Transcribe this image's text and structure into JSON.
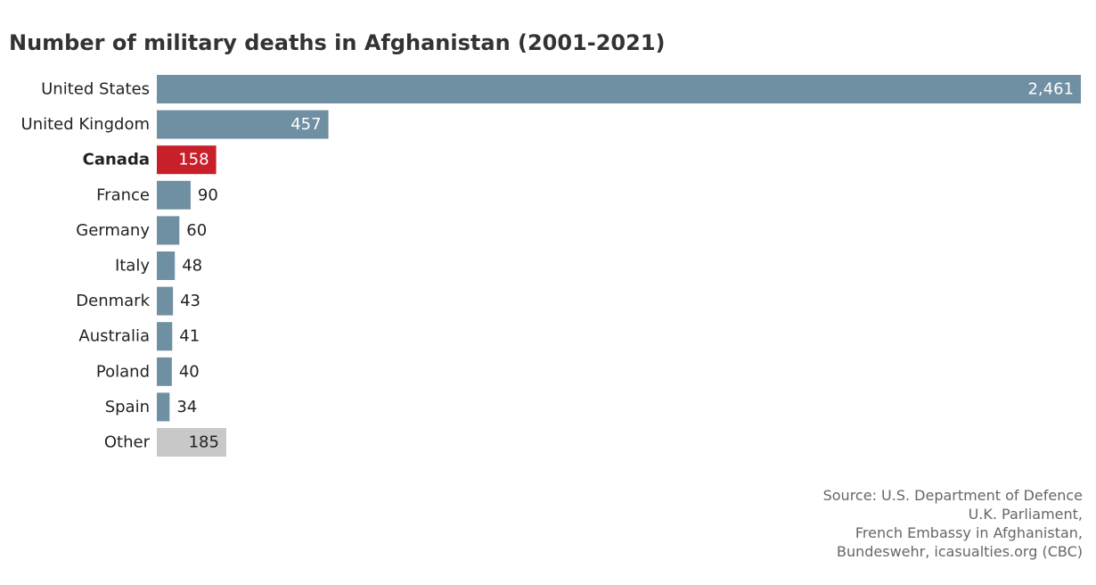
{
  "chart_data": {
    "type": "bar",
    "orientation": "horizontal",
    "title": "Number of military deaths in Afghanistan (2001-2021)",
    "categories": [
      "United States",
      "United Kingdom",
      "Canada",
      "France",
      "Germany",
      "Italy",
      "Denmark",
      "Australia",
      "Poland",
      "Spain",
      "Other"
    ],
    "values": [
      2461,
      457,
      158,
      90,
      60,
      48,
      43,
      41,
      40,
      34,
      185
    ],
    "value_labels": [
      "2,461",
      "457",
      "158",
      "90",
      "60",
      "48",
      "43",
      "41",
      "40",
      "34",
      "185"
    ],
    "highlight": "Canada",
    "xlim": [
      0,
      2461
    ],
    "grid": false,
    "legend": "none",
    "colors": {
      "default": "#6f8fa3",
      "highlight": "#c8202a",
      "other": "#c8c8c8"
    },
    "source_lines": [
      "Source: U.S. Department of Defence",
      "U.K. Parliament,",
      "French Embassy in Afghanistan,",
      "Bundeswehr, icasualties.org (CBC)"
    ]
  }
}
